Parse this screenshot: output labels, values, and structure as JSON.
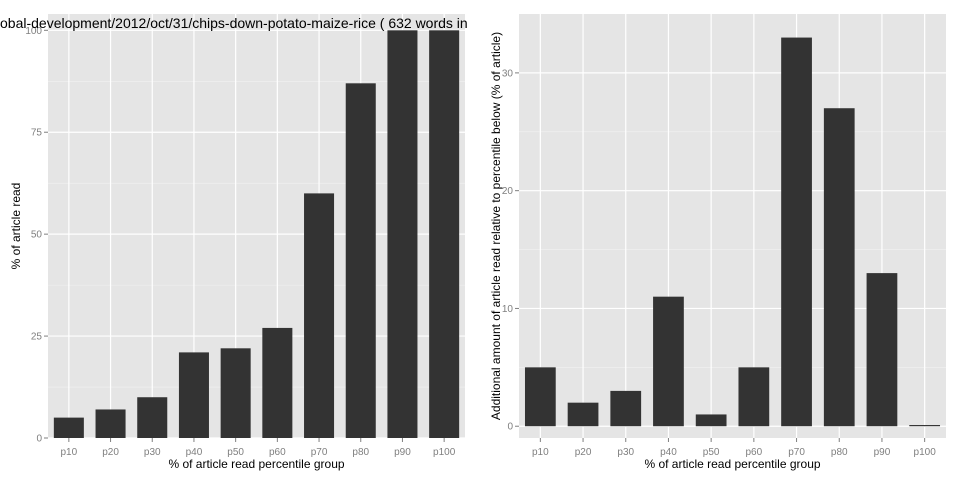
{
  "left_title": "obal-development/2012/oct/31/chips-down-potato-maize-rice ( 632 words in",
  "chart_data": [
    {
      "type": "bar",
      "title": "obal-development/2012/oct/31/chips-down-potato-maize-rice ( 632 words in",
      "xlabel": "% of article read percentile group",
      "ylabel": "% of article read",
      "categories": [
        "p10",
        "p20",
        "p30",
        "p40",
        "p50",
        "p60",
        "p70",
        "p80",
        "p90",
        "p100"
      ],
      "values": [
        5,
        7,
        10,
        21,
        22,
        27,
        60,
        87,
        100,
        100
      ],
      "ylim": [
        0,
        104
      ],
      "yticks": [
        0,
        25,
        50,
        75,
        100
      ],
      "ytick_labels": [
        "0",
        "25",
        "50",
        "75",
        "100"
      ],
      "grid": true,
      "bar_color": "#333333",
      "panel_color": "#e5e5e5"
    },
    {
      "type": "bar",
      "title": "",
      "xlabel": "% of article read percentile group",
      "ylabel": "Additional amount of article read relative to percentile below (% of article)",
      "categories": [
        "p10",
        "p20",
        "p30",
        "p40",
        "p50",
        "p60",
        "p70",
        "p80",
        "p90",
        "p100"
      ],
      "values": [
        5,
        2,
        3,
        11,
        1,
        5,
        33,
        27,
        13,
        0
      ],
      "ylim": [
        -1,
        35
      ],
      "yticks": [
        0,
        10,
        20,
        30
      ],
      "ytick_labels": [
        "0",
        "10",
        "20",
        "30"
      ],
      "grid": true,
      "bar_color": "#333333",
      "panel_color": "#e5e5e5"
    }
  ]
}
